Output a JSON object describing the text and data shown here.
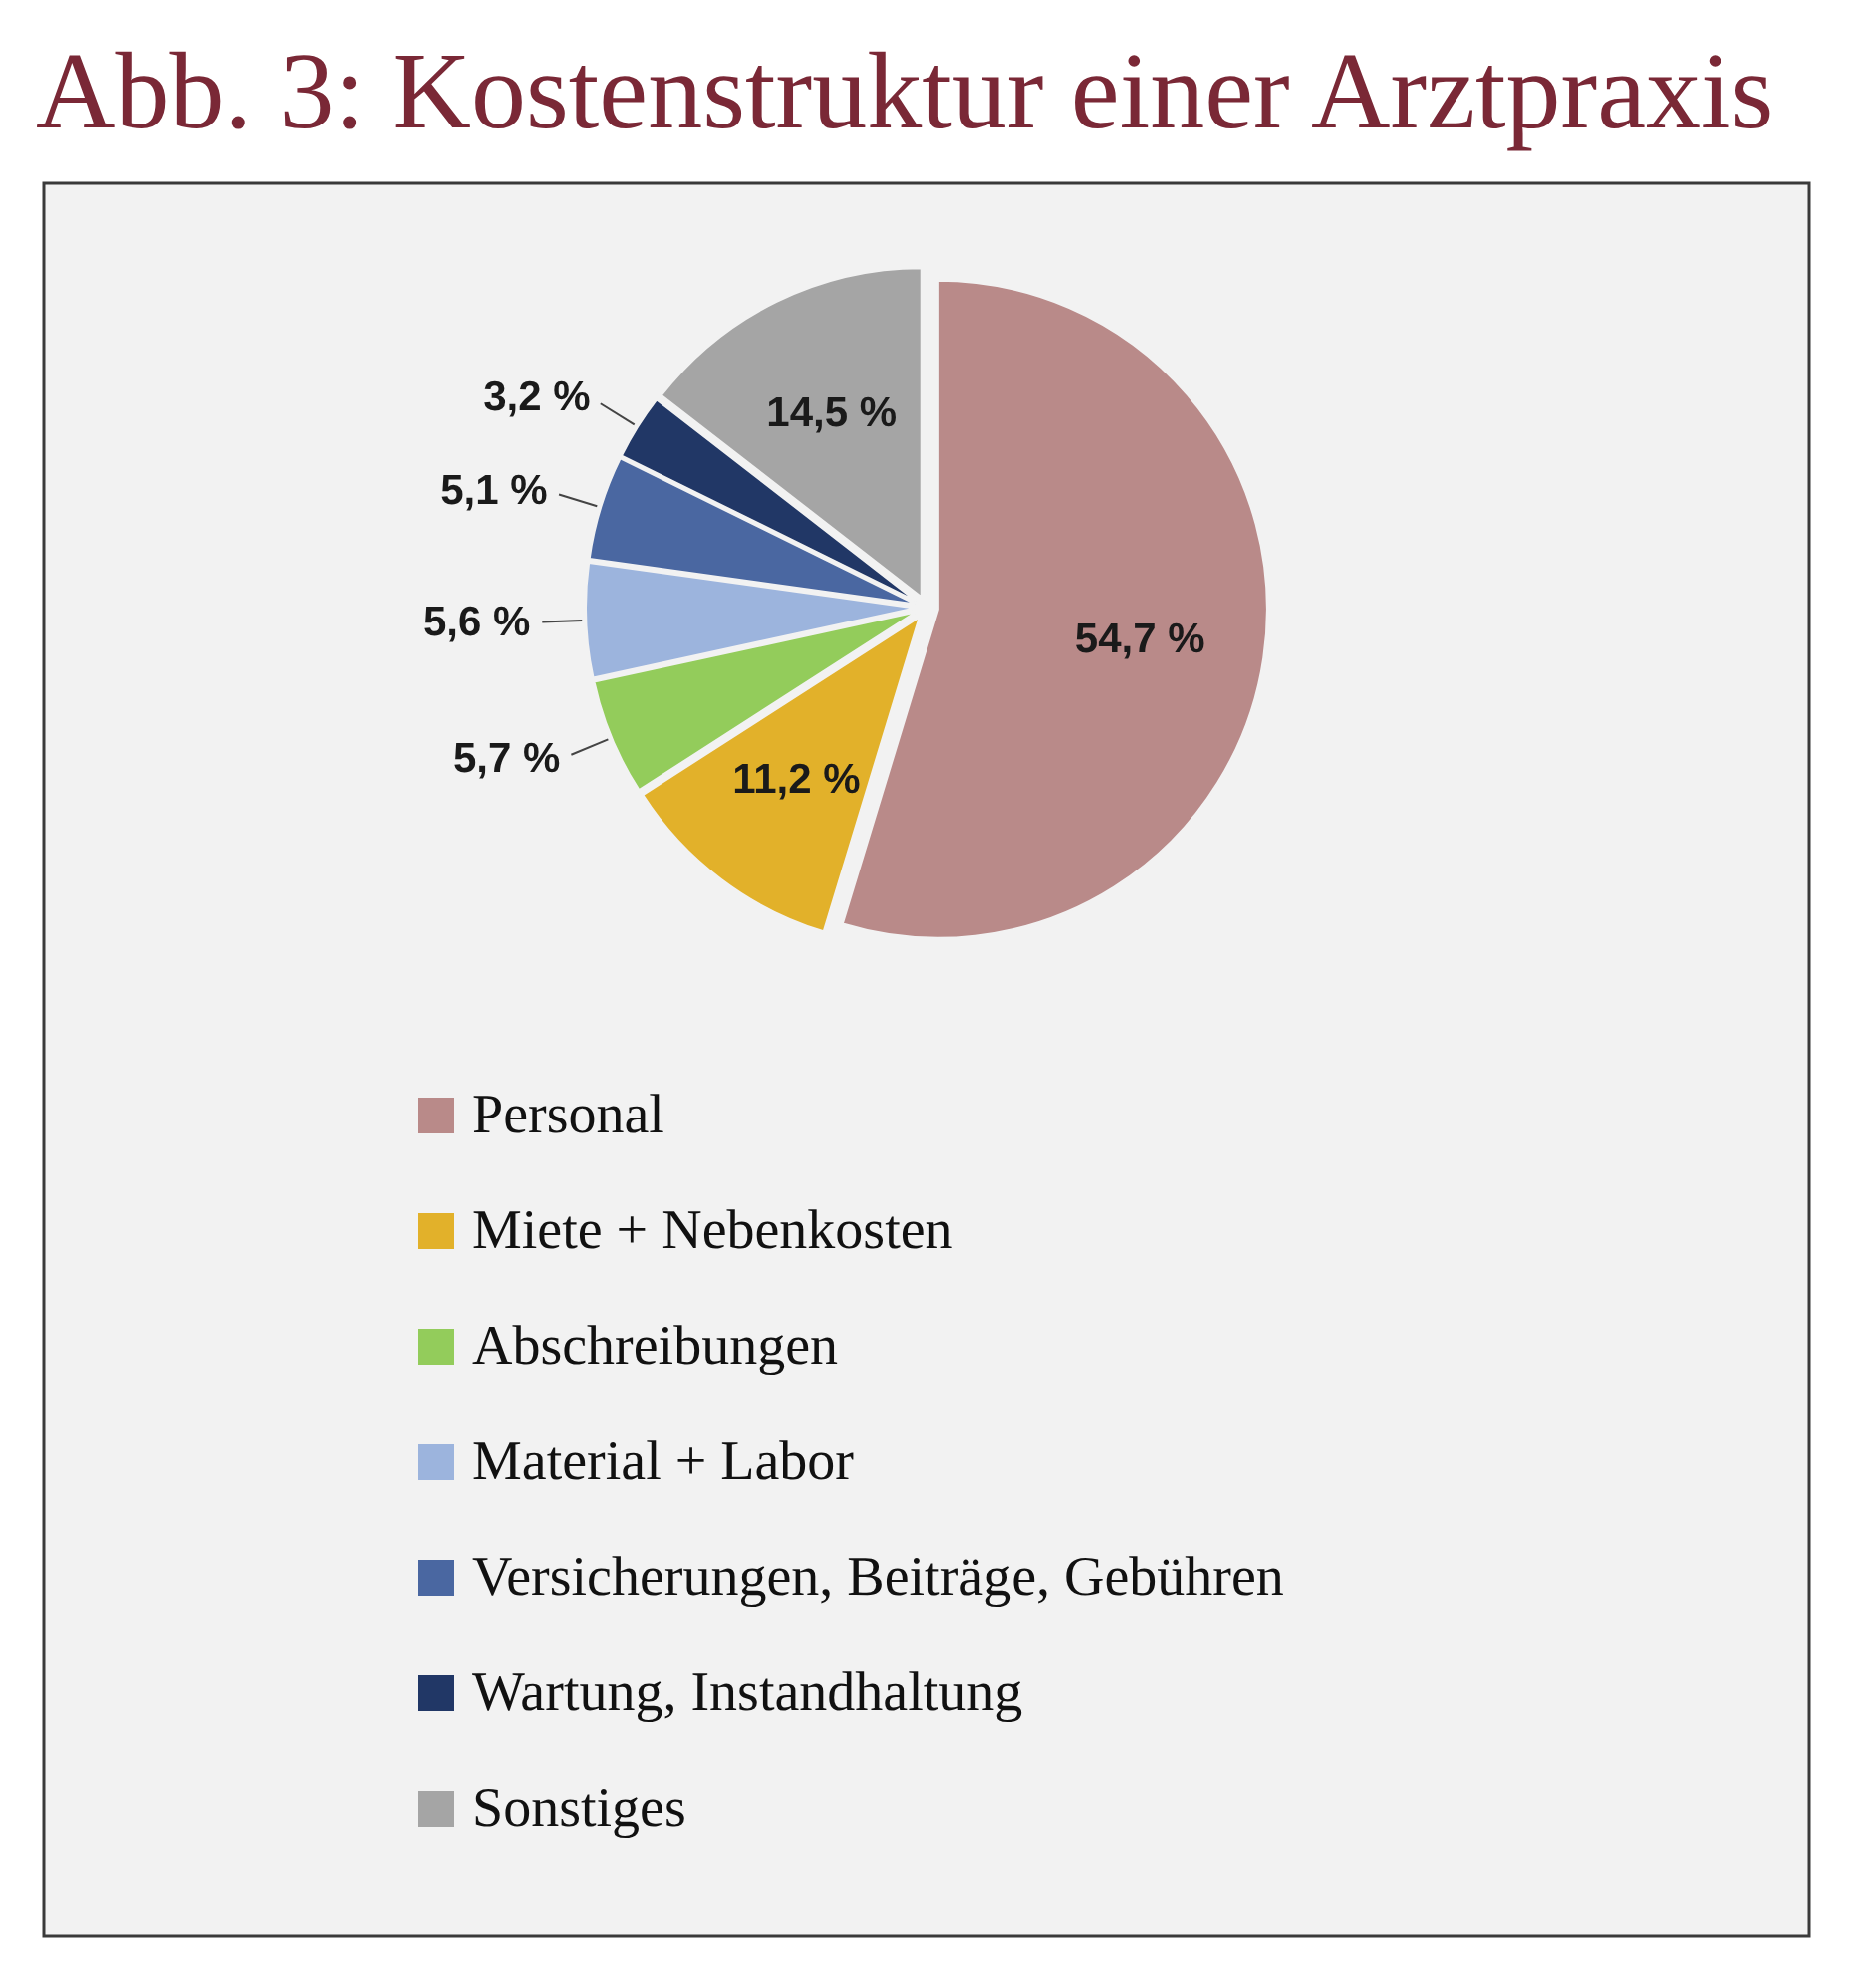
{
  "chart_data": {
    "type": "pie",
    "title": "Abb. 3: Kostenstruktur einer Arztpraxis",
    "categories": [
      "Personal",
      "Miete + Nebenkosten",
      "Abschreibungen",
      "Material + Labor",
      "Versicherungen, Beiträge, Gebühren",
      "Wartung, Instandhaltung",
      "Sonstiges"
    ],
    "values": [
      54.7,
      11.2,
      5.7,
      5.6,
      5.1,
      3.2,
      14.5
    ],
    "colors": [
      "#b98a89",
      "#e2b12a",
      "#93cc5b",
      "#9cb4dd",
      "#4a67a1",
      "#213766",
      "#a5a5a5"
    ],
    "value_labels": [
      "54,7 %",
      "11,2 %",
      "5,7 %",
      "5,6 %",
      "5,1 %",
      "3,2 %",
      "14,5 %"
    ],
    "legend": "bottom"
  }
}
